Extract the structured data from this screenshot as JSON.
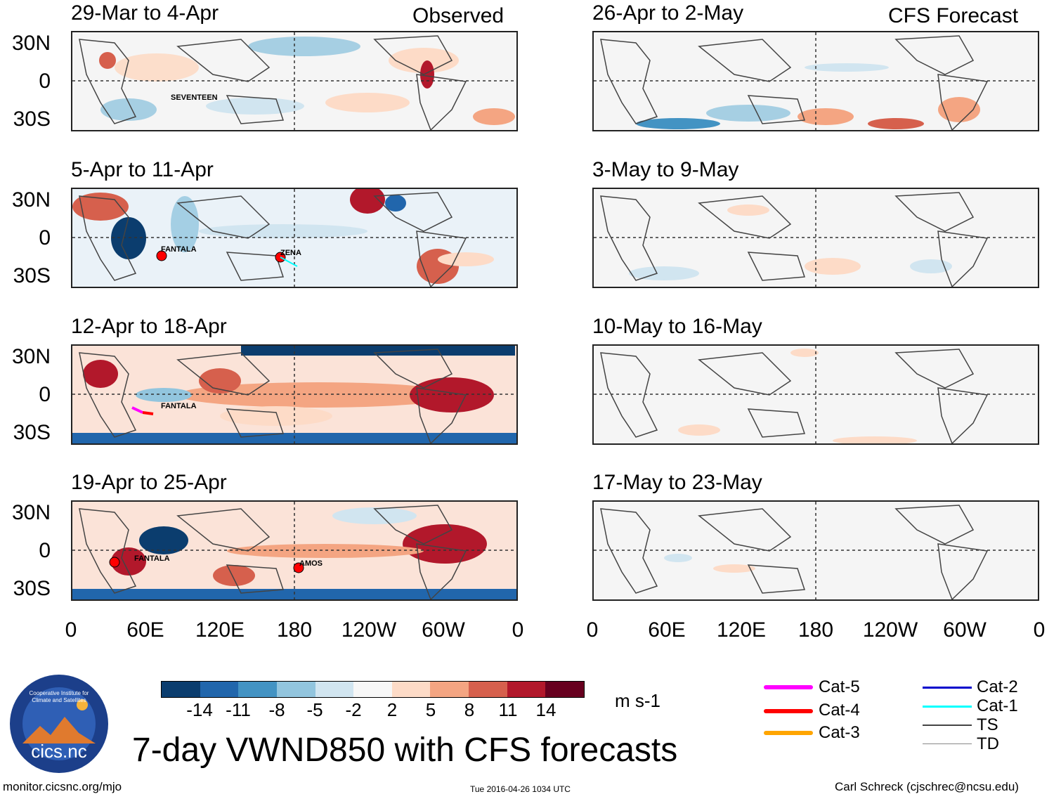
{
  "header": {
    "left_label": "Observed",
    "right_label": "CFS Forecast"
  },
  "observed_panels": [
    {
      "title": "29-Mar to 4-Apr",
      "storms": [
        "SEVENTEEN"
      ]
    },
    {
      "title": "5-Apr to 11-Apr",
      "storms": [
        "FANTALA",
        "ZENA"
      ]
    },
    {
      "title": "12-Apr to 18-Apr",
      "storms": [
        "FANTALA"
      ]
    },
    {
      "title": "19-Apr to 25-Apr",
      "storms": [
        "FANTALA",
        "AMOS"
      ]
    }
  ],
  "forecast_panels": [
    {
      "title": "26-Apr to 2-May"
    },
    {
      "title": "3-May to 9-May"
    },
    {
      "title": "10-May to 16-May"
    },
    {
      "title": "17-May to 23-May"
    }
  ],
  "lat_labels": [
    "30N",
    "0",
    "30S"
  ],
  "lon_labels": [
    "0",
    "60E",
    "120E",
    "180",
    "120W",
    "60W",
    "0"
  ],
  "colorbar": {
    "labels": [
      "-14",
      "-11",
      "-8",
      "-5",
      "-2",
      "2",
      "5",
      "8",
      "11",
      "14"
    ],
    "units": "m s-1",
    "colors": [
      "#0b3d6e",
      "#2166ac",
      "#4393c3",
      "#92c5de",
      "#d1e5f0",
      "#f7f7f7",
      "#fddbc7",
      "#f4a582",
      "#d6604d",
      "#b2182b",
      "#67001f"
    ]
  },
  "legend": {
    "items": [
      {
        "label": "Cat-5",
        "color": "#ff00ff"
      },
      {
        "label": "Cat-4",
        "color": "#ff0000"
      },
      {
        "label": "Cat-3",
        "color": "#ffa500"
      },
      {
        "label": "Cat-2",
        "color": "#0000cc"
      },
      {
        "label": "Cat-1",
        "color": "#00ffff"
      },
      {
        "label": "TS",
        "color": "#444444"
      },
      {
        "label": "TD",
        "color": "#888888"
      }
    ]
  },
  "logo": {
    "text": "cics.nc",
    "ring_text": "Cooperative Institute for Climate and Satellites"
  },
  "main_title": "7-day VWND850 with CFS forecasts",
  "footer": {
    "website": "monitor.cicsnc.org/mjo",
    "timestamp": "Tue 2016-04-26 1034 UTC",
    "author": "Carl Schreck (cjschrec@ncsu.edu)"
  }
}
